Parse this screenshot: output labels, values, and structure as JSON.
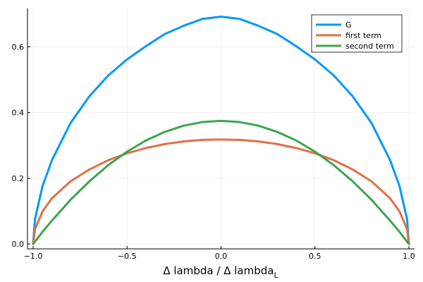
{
  "chart_data": {
    "type": "line",
    "title": "",
    "xlabel_main": "Δ lambda / Δ lambda",
    "xlabel_sub": "L",
    "ylabel": "",
    "xlim": [
      -1.0,
      1.0
    ],
    "ylim": [
      0.0,
      0.7
    ],
    "x_ticks": [
      -1.0,
      -0.5,
      0.0,
      0.5,
      1.0
    ],
    "x_tick_labels": [
      "−1.0",
      "−0.5",
      "0.0",
      "0.5",
      "1.0"
    ],
    "y_ticks": [
      0.0,
      0.2,
      0.4,
      0.6
    ],
    "y_tick_labels": [
      "0.0",
      "0.2",
      "0.4",
      "0.6"
    ],
    "grid": true,
    "legend_position": "top-right",
    "x": [
      -1.0,
      -0.99,
      -0.95,
      -0.9,
      -0.8,
      -0.7,
      -0.6,
      -0.5,
      -0.4,
      -0.3,
      -0.2,
      -0.1,
      0.0,
      0.1,
      0.2,
      0.3,
      0.4,
      0.5,
      0.6,
      0.7,
      0.8,
      0.9,
      0.95,
      0.99,
      1.0
    ],
    "series": [
      {
        "name": "G",
        "color": "#009af9",
        "values": [
          0.0,
          0.076,
          0.176,
          0.255,
          0.369,
          0.45,
          0.513,
          0.562,
          0.602,
          0.639,
          0.664,
          0.685,
          0.692,
          0.685,
          0.664,
          0.639,
          0.602,
          0.562,
          0.513,
          0.45,
          0.369,
          0.255,
          0.176,
          0.076,
          0.0
        ]
      },
      {
        "name": "first term",
        "color": "#e26f46",
        "values": [
          0.0,
          0.045,
          0.099,
          0.139,
          0.191,
          0.227,
          0.255,
          0.276,
          0.292,
          0.304,
          0.312,
          0.317,
          0.318,
          0.317,
          0.312,
          0.304,
          0.292,
          0.276,
          0.255,
          0.227,
          0.191,
          0.139,
          0.099,
          0.045,
          0.0
        ]
      },
      {
        "name": "second term",
        "color": "#3da44d",
        "values": [
          0.0,
          0.007,
          0.037,
          0.071,
          0.135,
          0.191,
          0.24,
          0.281,
          0.315,
          0.341,
          0.36,
          0.371,
          0.375,
          0.371,
          0.36,
          0.341,
          0.315,
          0.281,
          0.24,
          0.191,
          0.135,
          0.071,
          0.037,
          0.007,
          0.0
        ]
      }
    ]
  }
}
